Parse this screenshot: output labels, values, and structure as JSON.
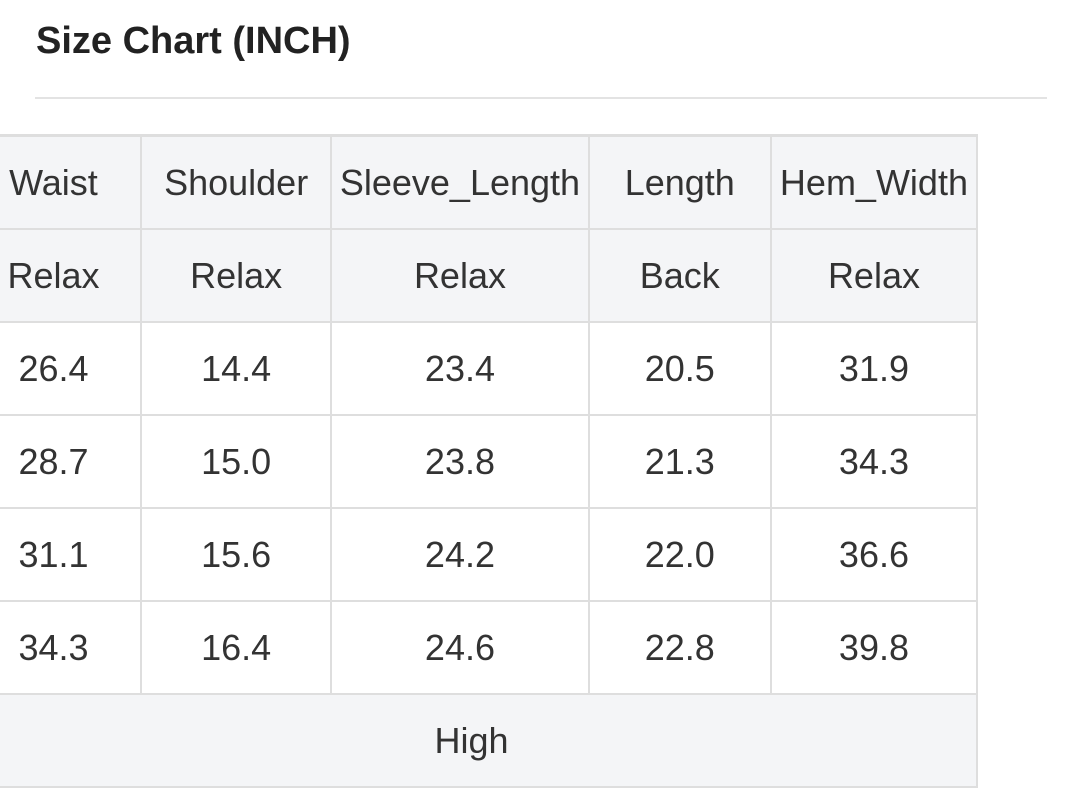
{
  "title": "Size Chart (INCH)",
  "table": {
    "headers": [
      "Waist",
      "Shoulder",
      "Sleeve_Length",
      "Length",
      "Hem_Width"
    ],
    "subheaders": [
      "Relax",
      "Relax",
      "Relax",
      "Back",
      "Relax"
    ],
    "rows": [
      [
        "26.4",
        "14.4",
        "23.4",
        "20.5",
        "31.9"
      ],
      [
        "28.7",
        "15.0",
        "23.8",
        "21.3",
        "34.3"
      ],
      [
        "31.1",
        "15.6",
        "24.2",
        "22.0",
        "36.6"
      ],
      [
        "34.3",
        "16.4",
        "24.6",
        "22.8",
        "39.8"
      ]
    ],
    "footer": "High"
  },
  "colors": {
    "header_bg": "#f4f5f7",
    "border": "#dedede",
    "text": "#333333"
  }
}
